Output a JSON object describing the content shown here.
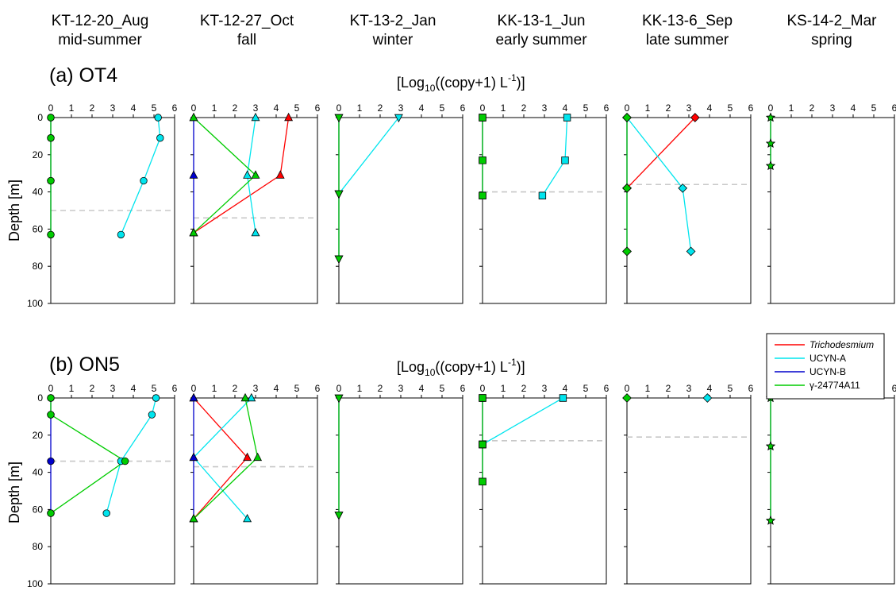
{
  "columns": [
    {
      "title1": "KT-12-20_Aug",
      "title2": "mid-summer"
    },
    {
      "title1": "KT-12-27_Oct",
      "title2": "fall"
    },
    {
      "title1": "KT-13-2_Jan",
      "title2": "winter"
    },
    {
      "title1": "KK-13-1_Jun",
      "title2": "early summer"
    },
    {
      "title1": "KK-13-6_Sep",
      "title2": "late summer"
    },
    {
      "title1": "KS-14-2_Mar",
      "title2": "spring"
    }
  ],
  "rows": [
    {
      "label": "(a) OT4"
    },
    {
      "label": "(b) ON5"
    }
  ],
  "axis": {
    "x_unit_prefix": "[Log",
    "x_unit_sub": "10",
    "x_unit_mid": "((copy+1) L",
    "x_unit_sup": "-1",
    "x_unit_suffix": ")]",
    "ylabel": "Depth [m]",
    "x_ticks": [
      "0",
      "1",
      "2",
      "3",
      "4",
      "5",
      "6"
    ],
    "y_ticks": [
      "0",
      "20",
      "40",
      "60",
      "80",
      "100"
    ]
  },
  "legend": {
    "items": [
      {
        "label": "Trichodesmium",
        "color": "#ff0000",
        "italic": true
      },
      {
        "label": "UCYN-A",
        "color": "#00e5ee",
        "italic": false
      },
      {
        "label": "UCYN-B",
        "color": "#0000cc",
        "italic": false
      },
      {
        "label": "γ-24774A11",
        "color": "#00cc00",
        "italic": false
      }
    ]
  },
  "chart_data": {
    "type": "line",
    "xlim": [
      0,
      6
    ],
    "ylim": [
      0,
      100
    ],
    "y_inverted": true,
    "series_colors": {
      "Trichodesmium": "#ff0000",
      "UCYN-A": "#00e5ee",
      "UCYN-B": "#0000cc",
      "γ-24774A11": "#00cc00"
    },
    "panels": [
      {
        "row": 0,
        "col": 0,
        "marker": "circle",
        "mld": 50,
        "series": [
          {
            "name": "UCYN-A",
            "points": [
              [
                5.2,
                0
              ],
              [
                5.3,
                11
              ],
              [
                4.5,
                34
              ],
              [
                3.4,
                63
              ]
            ]
          },
          {
            "name": "UCYN-B",
            "points": [
              [
                0,
                0
              ],
              [
                0,
                11
              ],
              [
                0,
                34
              ],
              [
                0,
                63
              ]
            ]
          },
          {
            "name": "γ-24774A11",
            "points": [
              [
                0,
                0
              ],
              [
                0,
                11
              ],
              [
                0,
                34
              ],
              [
                0,
                63
              ]
            ]
          }
        ]
      },
      {
        "row": 0,
        "col": 1,
        "marker": "triangle-up",
        "mld": 54,
        "series": [
          {
            "name": "UCYN-A",
            "points": [
              [
                3.0,
                0
              ],
              [
                2.6,
                31
              ],
              [
                3.0,
                62
              ]
            ]
          },
          {
            "name": "Trichodesmium",
            "points": [
              [
                4.6,
                0
              ],
              [
                4.2,
                31
              ],
              [
                0,
                62
              ]
            ]
          },
          {
            "name": "UCYN-B",
            "points": [
              [
                0,
                0
              ],
              [
                0,
                31
              ],
              [
                0,
                62
              ]
            ]
          },
          {
            "name": "γ-24774A11",
            "points": [
              [
                0,
                0
              ],
              [
                3.0,
                31
              ],
              [
                0,
                62
              ]
            ]
          }
        ]
      },
      {
        "row": 0,
        "col": 2,
        "marker": "triangle-down",
        "mld": null,
        "series": [
          {
            "name": "UCYN-A",
            "points": [
              [
                2.9,
                0
              ],
              [
                0,
                41
              ]
            ]
          },
          {
            "name": "UCYN-B",
            "points": [
              [
                0,
                0
              ],
              [
                0,
                41
              ],
              [
                0,
                76
              ]
            ]
          },
          {
            "name": "γ-24774A11",
            "points": [
              [
                0,
                0
              ],
              [
                0,
                41
              ],
              [
                0,
                76
              ]
            ]
          }
        ]
      },
      {
        "row": 0,
        "col": 3,
        "marker": "square",
        "mld": 40,
        "series": [
          {
            "name": "UCYN-A",
            "points": [
              [
                4.1,
                0
              ],
              [
                4.0,
                23
              ],
              [
                2.9,
                42
              ]
            ]
          },
          {
            "name": "UCYN-B",
            "points": [
              [
                0,
                0
              ],
              [
                0,
                23
              ],
              [
                0,
                42
              ]
            ]
          },
          {
            "name": "γ-24774A11",
            "points": [
              [
                0,
                0
              ],
              [
                0,
                23
              ],
              [
                0,
                42
              ]
            ]
          }
        ]
      },
      {
        "row": 0,
        "col": 4,
        "marker": "diamond",
        "mld": 36,
        "series": [
          {
            "name": "Trichodesmium",
            "points": [
              [
                3.3,
                0
              ],
              [
                0,
                38
              ]
            ]
          },
          {
            "name": "UCYN-A",
            "points": [
              [
                0,
                0
              ],
              [
                2.7,
                38
              ],
              [
                3.1,
                72
              ]
            ]
          },
          {
            "name": "UCYN-B",
            "points": [
              [
                0,
                0
              ],
              [
                0,
                38
              ],
              [
                0,
                72
              ]
            ]
          },
          {
            "name": "γ-24774A11",
            "points": [
              [
                0,
                0
              ],
              [
                0,
                38
              ],
              [
                0,
                72
              ]
            ]
          }
        ]
      },
      {
        "row": 0,
        "col": 5,
        "marker": "star",
        "mld": null,
        "series": [
          {
            "name": "UCYN-B",
            "points": [
              [
                0,
                0
              ],
              [
                0,
                14
              ],
              [
                0,
                26
              ]
            ]
          },
          {
            "name": "γ-24774A11",
            "points": [
              [
                0,
                0
              ],
              [
                0,
                14
              ],
              [
                0,
                26
              ]
            ]
          }
        ]
      },
      {
        "row": 1,
        "col": 0,
        "marker": "circle",
        "mld": 34,
        "series": [
          {
            "name": "UCYN-A",
            "points": [
              [
                5.1,
                0
              ],
              [
                4.9,
                9
              ],
              [
                3.4,
                34
              ],
              [
                2.7,
                62
              ]
            ]
          },
          {
            "name": "UCYN-B",
            "points": [
              [
                0,
                0
              ],
              [
                0,
                9
              ],
              [
                0,
                34
              ],
              [
                0,
                62
              ]
            ]
          },
          {
            "name": "γ-24774A11",
            "points": [
              [
                0,
                0
              ],
              [
                0,
                9
              ],
              [
                3.6,
                34
              ],
              [
                0,
                62
              ]
            ]
          }
        ]
      },
      {
        "row": 1,
        "col": 1,
        "marker": "triangle-up",
        "mld": 37,
        "series": [
          {
            "name": "UCYN-A",
            "points": [
              [
                2.8,
                0
              ],
              [
                0,
                32
              ],
              [
                2.6,
                65
              ]
            ]
          },
          {
            "name": "Trichodesmium",
            "points": [
              [
                0,
                0
              ],
              [
                2.6,
                32
              ],
              [
                0,
                65
              ]
            ]
          },
          {
            "name": "UCYN-B",
            "points": [
              [
                0,
                0
              ],
              [
                0,
                32
              ],
              [
                0,
                65
              ]
            ]
          },
          {
            "name": "γ-24774A11",
            "points": [
              [
                2.5,
                0
              ],
              [
                3.1,
                32
              ],
              [
                0,
                65
              ]
            ]
          }
        ]
      },
      {
        "row": 1,
        "col": 2,
        "marker": "triangle-down",
        "mld": null,
        "series": [
          {
            "name": "UCYN-B",
            "points": [
              [
                0,
                0
              ],
              [
                0,
                63
              ]
            ]
          },
          {
            "name": "γ-24774A11",
            "points": [
              [
                0,
                0
              ],
              [
                0,
                63
              ]
            ]
          }
        ]
      },
      {
        "row": 1,
        "col": 3,
        "marker": "square",
        "mld": 23,
        "series": [
          {
            "name": "UCYN-A",
            "points": [
              [
                3.9,
                0
              ],
              [
                0,
                25
              ]
            ]
          },
          {
            "name": "UCYN-B",
            "points": [
              [
                0,
                0
              ],
              [
                0,
                25
              ],
              [
                0,
                45
              ]
            ]
          },
          {
            "name": "γ-24774A11",
            "points": [
              [
                0,
                0
              ],
              [
                0,
                25
              ],
              [
                0,
                45
              ]
            ]
          }
        ]
      },
      {
        "row": 1,
        "col": 4,
        "marker": "diamond",
        "mld": 21,
        "series": [
          {
            "name": "UCYN-A",
            "points": [
              [
                3.9,
                0
              ]
            ]
          },
          {
            "name": "γ-24774A11",
            "points": [
              [
                0,
                0
              ]
            ]
          }
        ]
      },
      {
        "row": 1,
        "col": 5,
        "marker": "star",
        "mld": null,
        "series": [
          {
            "name": "UCYN-B",
            "points": [
              [
                0,
                0
              ],
              [
                0,
                26
              ],
              [
                0,
                66
              ]
            ]
          },
          {
            "name": "γ-24774A11",
            "points": [
              [
                0,
                0
              ],
              [
                0,
                26
              ],
              [
                0,
                66
              ]
            ]
          }
        ]
      }
    ]
  }
}
